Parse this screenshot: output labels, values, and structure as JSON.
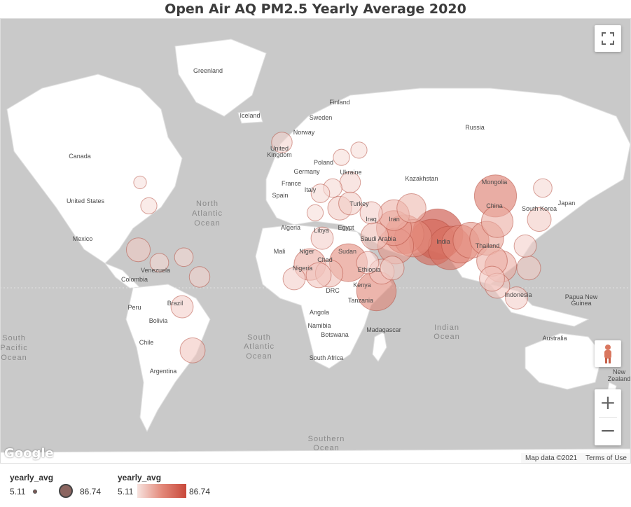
{
  "title": "Open Air AQ PM2.5  Yearly Average 2020",
  "map": {
    "labels": [
      {
        "text": "Greenland"
      },
      {
        "text": "Iceland"
      },
      {
        "text": "Finland"
      },
      {
        "text": "Sweden"
      },
      {
        "text": "Norway"
      },
      {
        "text": "Russia"
      },
      {
        "text": "United"
      },
      {
        "text": "Kingdom"
      },
      {
        "text": "Poland"
      },
      {
        "text": "Germany"
      },
      {
        "text": "Ukraine"
      },
      {
        "text": "France"
      },
      {
        "text": "Italy"
      },
      {
        "text": "Spain"
      },
      {
        "text": "Turkey"
      },
      {
        "text": "Kazakhstan"
      },
      {
        "text": "Mongolia"
      },
      {
        "text": "China"
      },
      {
        "text": "South Korea"
      },
      {
        "text": "Japan"
      },
      {
        "text": "Canada"
      },
      {
        "text": "United States"
      },
      {
        "text": "Mexico"
      },
      {
        "text": "North"
      },
      {
        "text": "Atlantic"
      },
      {
        "text": "Ocean"
      },
      {
        "text": "Algeria"
      },
      {
        "text": "Libya"
      },
      {
        "text": "Egypt"
      },
      {
        "text": "Iraq"
      },
      {
        "text": "Iran"
      },
      {
        "text": "Saudi Arabia"
      },
      {
        "text": "Mali"
      },
      {
        "text": "Niger"
      },
      {
        "text": "Chad"
      },
      {
        "text": "Sudan"
      },
      {
        "text": "Nigeria"
      },
      {
        "text": "Ethiopia"
      },
      {
        "text": "India"
      },
      {
        "text": "Thailand"
      },
      {
        "text": "Venezuela"
      },
      {
        "text": "Colombia"
      },
      {
        "text": "DRC"
      },
      {
        "text": "Kenya"
      },
      {
        "text": "Tanzania"
      },
      {
        "text": "Peru"
      },
      {
        "text": "Brazil"
      },
      {
        "text": "Bolivia"
      },
      {
        "text": "Angola"
      },
      {
        "text": "Namibia"
      },
      {
        "text": "Botswana"
      },
      {
        "text": "Madagascar"
      },
      {
        "text": "Chile"
      },
      {
        "text": "Argentina"
      },
      {
        "text": "South Africa"
      },
      {
        "text": "South"
      },
      {
        "text": "Atlantic"
      },
      {
        "text": "Ocean"
      },
      {
        "text": "Indian"
      },
      {
        "text": "Ocean"
      },
      {
        "text": "South"
      },
      {
        "text": "Pacific"
      },
      {
        "text": "Ocean"
      },
      {
        "text": "Southern"
      },
      {
        "text": "Ocean"
      },
      {
        "text": "Indonesia"
      },
      {
        "text": "Papua New"
      },
      {
        "text": "Guinea"
      },
      {
        "text": "Australia"
      },
      {
        "text": "New"
      },
      {
        "text": "Zealand"
      }
    ]
  },
  "bubble_data": {
    "type": "bubble-map",
    "metric": "yearly_avg",
    "range": [
      5.11,
      86.74
    ],
    "colors": {
      "low": "#f7e3df",
      "mid": "#e3897a",
      "high": "#c8483a"
    },
    "points": [
      {
        "lat": 30,
        "lon": 70,
        "value": 86.74
      },
      {
        "lat": 26,
        "lon": 67,
        "value": 70
      },
      {
        "lat": 23,
        "lon": 77,
        "value": 62
      },
      {
        "lat": 27,
        "lon": 89,
        "value": 40
      },
      {
        "lat": 25,
        "lon": 83,
        "value": 45
      },
      {
        "lat": 30,
        "lon": 51,
        "value": 48
      },
      {
        "lat": 28,
        "lon": 56,
        "value": 44
      },
      {
        "lat": 24,
        "lon": 46,
        "value": 40
      },
      {
        "lat": 33,
        "lon": 45,
        "value": 38
      },
      {
        "lat": 47,
        "lon": 103,
        "value": 58
      },
      {
        "lat": 36,
        "lon": 104,
        "value": 30
      },
      {
        "lat": 14,
        "lon": -3,
        "value": 30
      },
      {
        "lat": 15,
        "lon": 19,
        "value": 45
      },
      {
        "lat": -1,
        "lon": 35,
        "value": 50
      },
      {
        "lat": 16,
        "lon": 101,
        "value": 28
      },
      {
        "lat": 13,
        "lon": 106,
        "value": 30
      },
      {
        "lat": 28,
        "lon": 98,
        "value": 35
      },
      {
        "lat": 39,
        "lon": 45,
        "value": 28
      },
      {
        "lat": 42,
        "lon": 55,
        "value": 25
      },
      {
        "lat": 29,
        "lon": 34,
        "value": 22
      },
      {
        "lat": 28,
        "lon": 4,
        "value": 14
      },
      {
        "lat": 9,
        "lon": 8,
        "value": 22
      },
      {
        "lat": 8,
        "lon": 2,
        "value": 18
      },
      {
        "lat": 10,
        "lon": 38,
        "value": 18
      },
      {
        "lat": 15,
        "lon": 30,
        "value": 14
      },
      {
        "lat": 6,
        "lon": -12,
        "value": 14
      },
      {
        "lat": 22,
        "lon": -101,
        "value": 16
      },
      {
        "lat": 15,
        "lon": -89,
        "value": 10
      },
      {
        "lat": 18,
        "lon": -75,
        "value": 10
      },
      {
        "lat": 7,
        "lon": -66,
        "value": 12
      },
      {
        "lat": -10,
        "lon": -76,
        "value": 14
      },
      {
        "lat": -33,
        "lon": -70,
        "value": 18
      },
      {
        "lat": 64,
        "lon": -19,
        "value": 12
      },
      {
        "lat": 60,
        "lon": 15,
        "value": 8
      },
      {
        "lat": 62,
        "lon": 25,
        "value": 8
      },
      {
        "lat": 52,
        "lon": 20,
        "value": 12
      },
      {
        "lat": 50,
        "lon": 10,
        "value": 10
      },
      {
        "lat": 48,
        "lon": 3,
        "value": 10
      },
      {
        "lat": 42,
        "lon": 14,
        "value": 16
      },
      {
        "lat": 44,
        "lon": 20,
        "value": 15
      },
      {
        "lat": 40,
        "lon": 0,
        "value": 8
      },
      {
        "lat": 40,
        "lon": 32,
        "value": 14
      },
      {
        "lat": 37,
        "lon": 128,
        "value": 16
      },
      {
        "lat": 24,
        "lon": 120,
        "value": 14
      },
      {
        "lat": 12,
        "lon": 122,
        "value": 16
      },
      {
        "lat": 2,
        "lon": 104,
        "value": 18
      },
      {
        "lat": -5,
        "lon": 115,
        "value": 14
      },
      {
        "lat": 50,
        "lon": 130,
        "value": 10
      },
      {
        "lat": 43,
        "lon": -95,
        "value": 8
      },
      {
        "lat": 52,
        "lon": -100,
        "value": 6
      },
      {
        "lat": 6,
        "lon": 101,
        "value": 18
      },
      {
        "lat": 12,
        "lon": 44,
        "value": 16
      }
    ]
  },
  "controls": {
    "zoom_in_label": "+",
    "zoom_out_label": "−"
  },
  "attribution": {
    "map_data": "Map data ©2021",
    "terms": "Terms of Use",
    "logo": "Google"
  },
  "legend": {
    "size_title": "yearly_avg",
    "size_min": "5.11",
    "size_max": "86.74",
    "color_title": "yearly_avg",
    "color_min": "5.11",
    "color_max": "86.74"
  }
}
